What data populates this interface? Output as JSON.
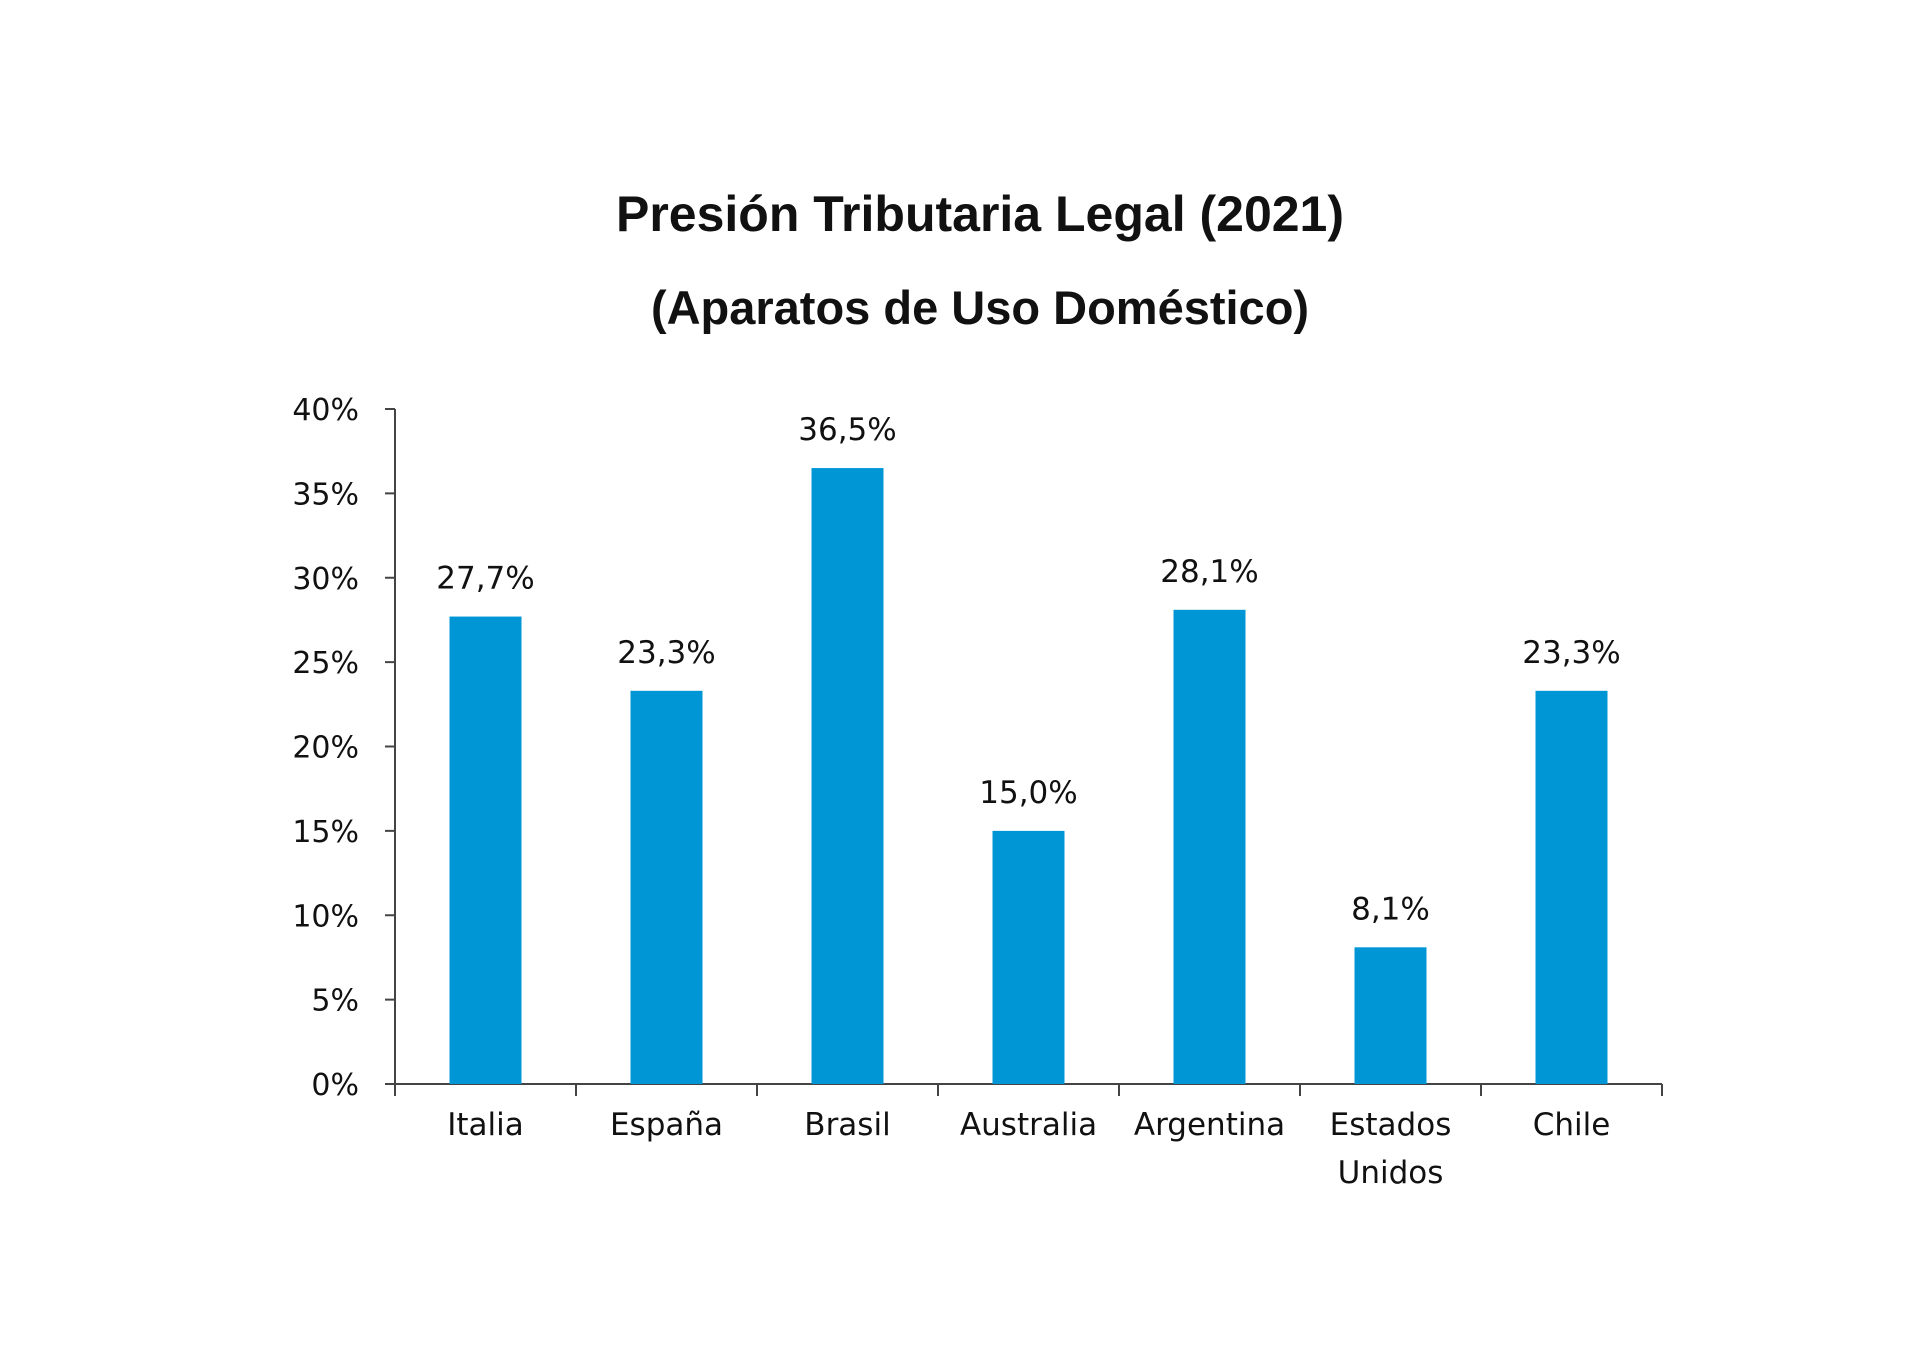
{
  "chart_data": {
    "type": "bar",
    "title": "Presión Tributaria Legal (2021)",
    "subtitle": "(Aparatos de Uso Doméstico)",
    "xlabel": "",
    "ylabel": "",
    "categories": [
      "Italia",
      "España",
      "Brasil",
      "Australia",
      "Argentina",
      [
        "Estados",
        "Unidos"
      ],
      "Chile"
    ],
    "values": [
      27.7,
      23.3,
      36.5,
      15.0,
      28.1,
      8.1,
      23.3
    ],
    "data_labels": [
      "27,7%",
      "23,3%",
      "36,5%",
      "15,0%",
      "28,1%",
      "8,1%",
      "23,3%"
    ],
    "ylim": [
      0,
      40
    ],
    "yticks": [
      0,
      5,
      10,
      15,
      20,
      25,
      30,
      35,
      40
    ],
    "ytick_labels": [
      "0%",
      "5%",
      "10%",
      "15%",
      "20%",
      "25%",
      "30%",
      "35%",
      "40%"
    ],
    "grid": false,
    "legend": "none",
    "bar_color": "#0096d6",
    "axis_color": "#444444"
  }
}
